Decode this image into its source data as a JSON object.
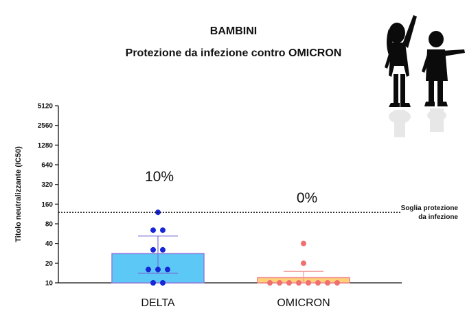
{
  "chart_data": {
    "type": "bar",
    "title": "BAMBINI",
    "subtitle": "Protezione da infezione contro OMICRON",
    "ylabel": "Titolo neutralizzante (IC50)",
    "xlabel": "",
    "y_scale": "log2",
    "ylim": [
      10,
      5120
    ],
    "y_ticks": [
      "10",
      "20",
      "40",
      "80",
      "160",
      "320",
      "640",
      "1280",
      "2560",
      "5120"
    ],
    "categories": [
      "DELTA",
      "OMICRON"
    ],
    "bars": [
      {
        "category": "DELTA",
        "value": 28,
        "error_low": 14,
        "error_high": 52,
        "color": "#5bc8f5",
        "edge": "#8a7de0",
        "points": [
          120,
          64,
          64,
          32,
          32,
          16,
          16,
          16,
          10,
          10
        ],
        "point_color": "#1726d8",
        "percent_label": "10%"
      },
      {
        "category": "OMICRON",
        "value": 12,
        "error_low": 10,
        "error_high": 15,
        "color": "#ffd27a",
        "edge": "#f08080",
        "points": [
          40,
          20,
          10,
          10,
          10,
          10,
          10,
          10,
          10,
          10
        ],
        "point_color": "#f07070",
        "percent_label": "0%"
      }
    ],
    "threshold": {
      "value": 120,
      "label_line1": "Soglia protezione",
      "label_line2": "da infezione"
    },
    "grid": false
  }
}
